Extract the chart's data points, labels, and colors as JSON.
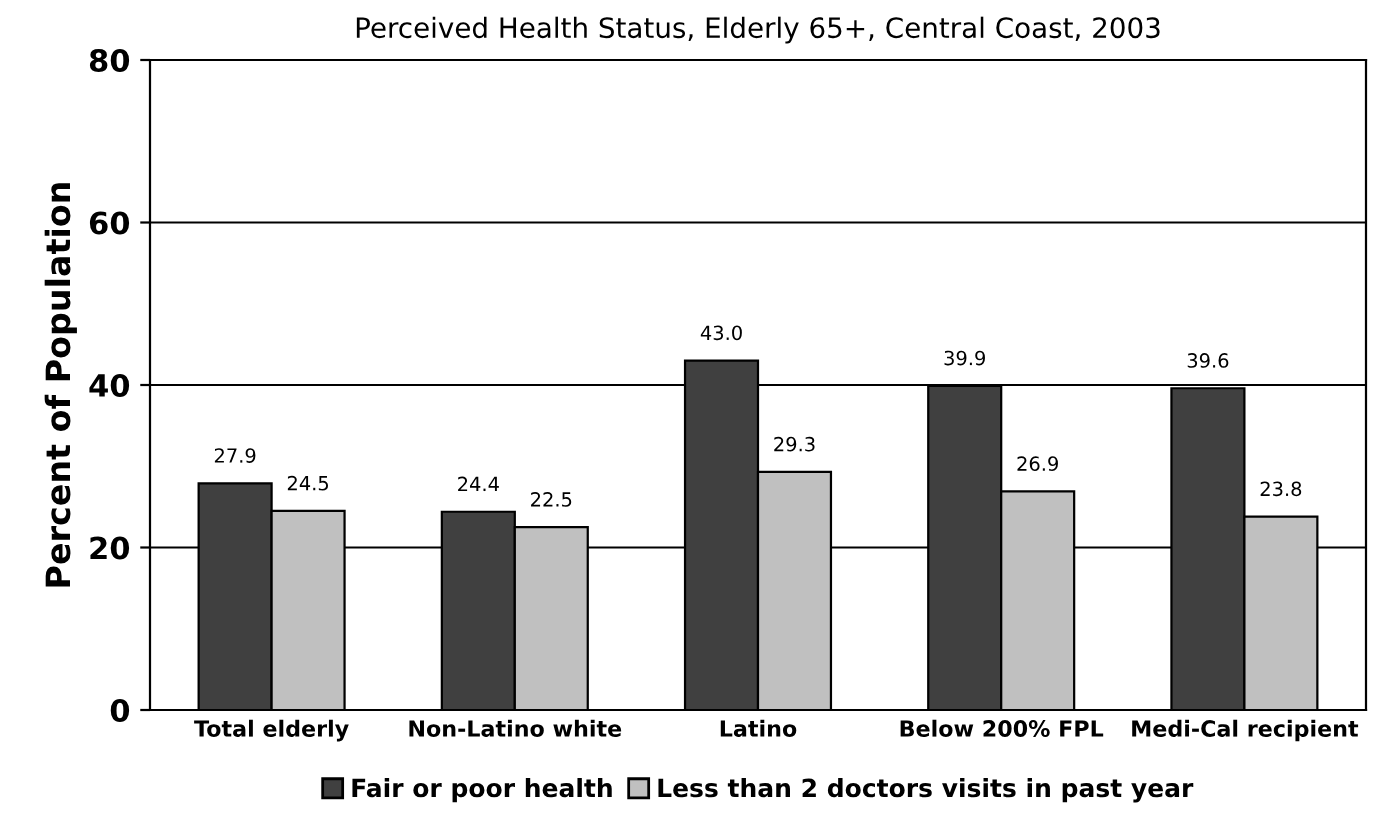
{
  "chart_data": {
    "type": "bar",
    "title": "Perceived Health Status, Elderly 65+, Central Coast, 2003",
    "ylabel": "Percent of Population",
    "categories": [
      "Total elderly",
      "Non-Latino white",
      "Latino",
      "Below 200% FPL",
      "Medi-Cal recipient"
    ],
    "series": [
      {
        "name": "Fair or poor health",
        "color": "#404040",
        "values": [
          27.9,
          24.4,
          43.0,
          39.9,
          39.6
        ],
        "value_labels": [
          "27.9",
          "24.4",
          "43.0",
          "39.9",
          "39.6"
        ]
      },
      {
        "name": "Less than 2 doctors visits in past year",
        "color": "#c0c0c0",
        "values": [
          24.5,
          22.5,
          29.3,
          26.9,
          23.8
        ],
        "value_labels": [
          "24.5",
          "22.5",
          "29.3",
          "26.9",
          "23.8"
        ]
      }
    ],
    "ylim": [
      0,
      80
    ],
    "yticks": [
      0,
      20,
      40,
      60,
      80
    ],
    "grid": "y",
    "legend": "bottom"
  }
}
